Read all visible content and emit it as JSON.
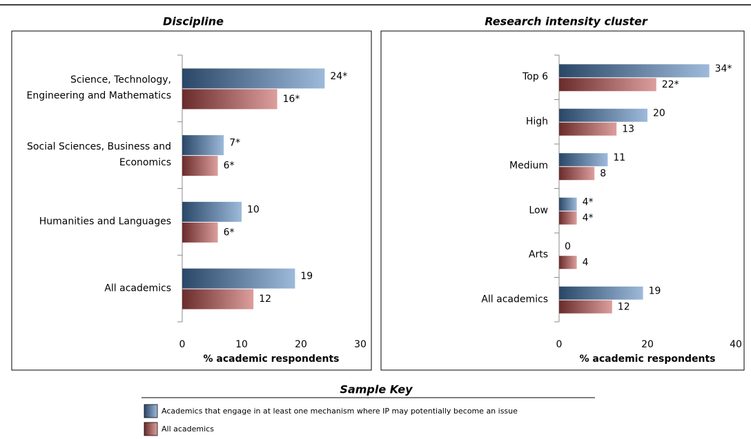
{
  "chart_data": [
    {
      "type": "bar",
      "orientation": "horizontal",
      "title": "Discipline",
      "categories": [
        "Science, Technology, Engineering and Mathematics",
        "Social Sciences, Business and Economics",
        "Humanities and Languages",
        "All academics"
      ],
      "series": [
        {
          "name": "Academics that engage in at least one mechanism where IP may potentially become an issue",
          "color": "#4f81bd",
          "values": [
            24,
            7,
            10,
            19
          ],
          "value_labels": [
            "24*",
            "7*",
            "10",
            "19"
          ]
        },
        {
          "name": "All academics",
          "color": "#c0504d",
          "values": [
            16,
            6,
            6,
            12
          ],
          "value_labels": [
            "16*",
            "6*",
            "6*",
            "12"
          ]
        }
      ],
      "xlabel": "% academic respondents",
      "xlim": [
        0,
        30
      ],
      "xticks": [
        0,
        10,
        20,
        30
      ]
    },
    {
      "type": "bar",
      "orientation": "horizontal",
      "title": "Research intensity cluster",
      "categories": [
        "Top 6",
        "High",
        "Medium",
        "Low",
        "Arts",
        "All academics"
      ],
      "series": [
        {
          "color": "#4f81bd",
          "values": [
            34,
            20,
            11,
            4,
            0,
            19
          ],
          "value_labels": [
            "34*",
            "20",
            "11",
            "4*",
            "0",
            "19"
          ]
        },
        {
          "color": "#c0504d",
          "values": [
            22,
            13,
            8,
            4,
            4,
            12
          ],
          "value_labels": [
            "22*",
            "13",
            "8",
            "4*",
            "4",
            "12"
          ]
        }
      ],
      "xlabel": "% academic respondents",
      "xlim": [
        0,
        40
      ],
      "xticks": [
        0,
        20,
        40
      ]
    }
  ],
  "legend": {
    "title": "Sample Key"
  }
}
